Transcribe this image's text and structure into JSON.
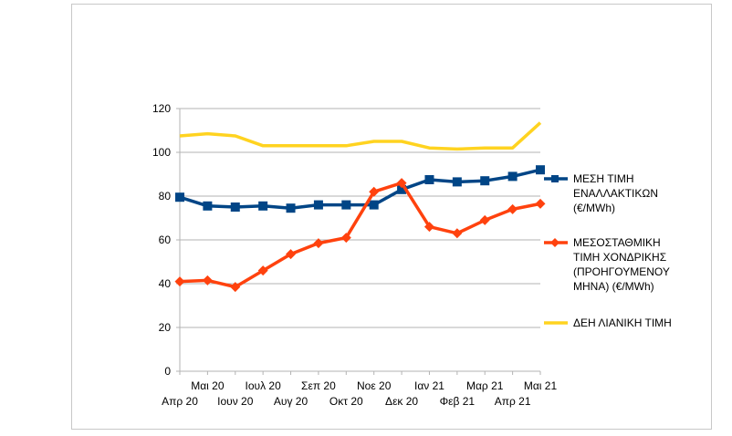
{
  "chart_data": {
    "type": "line",
    "categories": [
      "Απρ 20",
      "Μαι 20",
      "Ιουν 20",
      "Ιουλ 20",
      "Αυγ 20",
      "Σεπ 20",
      "Οκτ 20",
      "Νοε 20",
      "Δεκ 20",
      "Ιαν 21",
      "Φεβ 21",
      "Μαρ 21",
      "Απρ 21",
      "Μαι 21"
    ],
    "ylim": [
      0,
      120
    ],
    "yticks": [
      0,
      20,
      40,
      60,
      80,
      100,
      120
    ],
    "grid": true,
    "legend_position": "right",
    "series": [
      {
        "name_lines": [
          "ΜΕΣΗ ΤΙΜΗ",
          "ΕΝΑΛΛΑΚΤΙΚΩΝ",
          "(€/MWh)"
        ],
        "color": "#004586",
        "marker": "square",
        "values": [
          79.5,
          75.5,
          75.0,
          75.5,
          74.5,
          76.0,
          76.0,
          76.0,
          83.0,
          87.5,
          86.5,
          87.0,
          89.0,
          92.0
        ]
      },
      {
        "name_lines": [
          "ΜΕΣΟΣΤΑΘΜΙΚΗ",
          "ΤΙΜΗ ΧΟΝΔΡΙΚΗΣ",
          "(ΠΡΟΗΓΟΥΜΕΝΟΥ",
          "ΜΗΝΑ)  (€/MWh)"
        ],
        "color": "#ff420e",
        "marker": "diamond",
        "values": [
          41.0,
          41.5,
          38.5,
          46.0,
          53.5,
          58.5,
          61.0,
          82.0,
          86.0,
          66.0,
          63.0,
          69.0,
          74.0,
          76.5
        ]
      },
      {
        "name_lines": [
          "ΔΕΗ ΛΙΑΝΙΚΗ ΤΙΜΗ"
        ],
        "color": "#ffd320",
        "marker": "none",
        "values": [
          107.5,
          108.5,
          107.5,
          103.0,
          103.0,
          103.0,
          103.0,
          105.0,
          105.0,
          102.0,
          101.5,
          102.0,
          102.0,
          113.5
        ]
      }
    ]
  }
}
